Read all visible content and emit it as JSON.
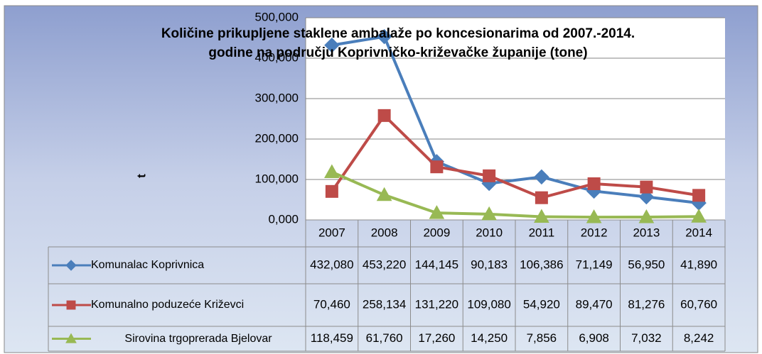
{
  "chart_data": {
    "type": "line",
    "title": "Količine prikupljene staklene ambalaže po koncesionarima  od 2007.-2014.\ngodine na području Koprivničko-križevačke županije (tone)",
    "y_label": "t",
    "categories": [
      "2007",
      "2008",
      "2009",
      "2010",
      "2011",
      "2012",
      "2013",
      "2014"
    ],
    "ylim": [
      0,
      500
    ],
    "yticks": [
      {
        "value": 0,
        "label": "0,000"
      },
      {
        "value": 100,
        "label": "100,000"
      },
      {
        "value": 200,
        "label": "200,000"
      },
      {
        "value": 300,
        "label": "300,000"
      },
      {
        "value": 400,
        "label": "400,000"
      },
      {
        "value": 500,
        "label": "500,000"
      }
    ],
    "grid": true,
    "series": [
      {
        "name": "Komunalac Koprivnica",
        "color": "#4a7ebb",
        "marker": "diamond",
        "values": [
          432.08,
          453.22,
          144.145,
          90.183,
          106.386,
          71.149,
          56.95,
          41.89
        ],
        "value_labels": [
          "432,080",
          "453,220",
          "144,145",
          "90,183",
          "106,386",
          "71,149",
          "56,950",
          "41,890"
        ]
      },
      {
        "name": "Komunalno poduzeće Križevci",
        "color": "#be4b48",
        "marker": "square",
        "values": [
          70.46,
          258.134,
          131.22,
          109.08,
          54.92,
          89.47,
          81.276,
          60.76
        ],
        "value_labels": [
          "70,460",
          "258,134",
          "131,220",
          "109,080",
          "54,920",
          "89,470",
          "81,276",
          "60,760"
        ]
      },
      {
        "name": "Sirovina trgoprerada Bjelovar",
        "color": "#98b954",
        "marker": "triangle",
        "values": [
          118.459,
          61.76,
          17.26,
          14.25,
          7.856,
          6.908,
          7.032,
          8.242
        ],
        "value_labels": [
          "118,459",
          "61,760",
          "17,260",
          "14,250",
          "7,856",
          "6,908",
          "7,032",
          "8,242"
        ]
      }
    ]
  }
}
